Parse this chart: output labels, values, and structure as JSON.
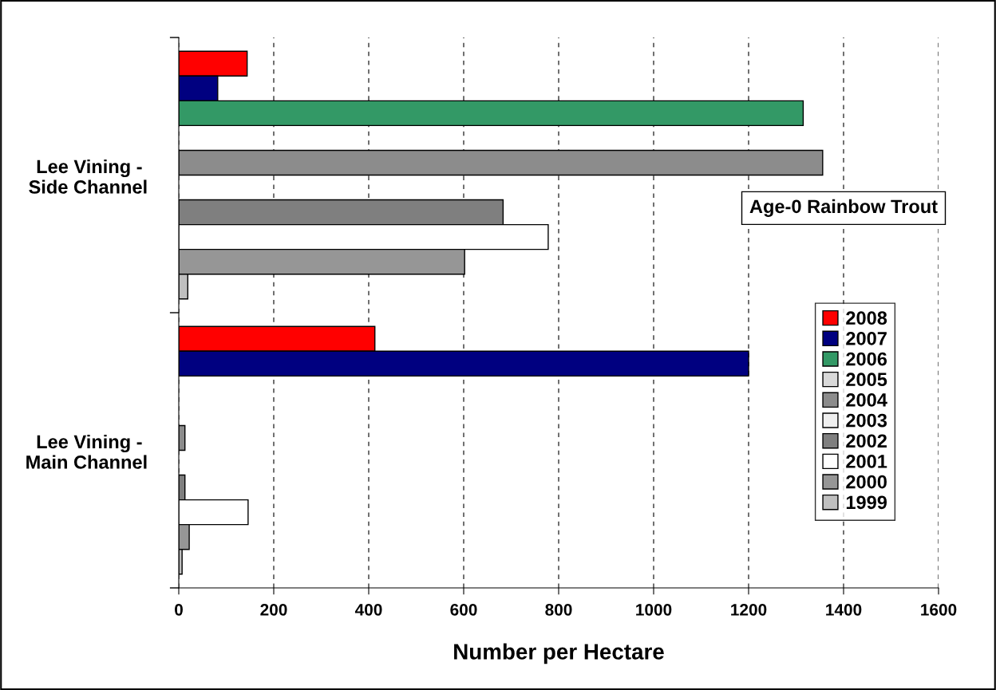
{
  "chart_data": {
    "type": "bar",
    "orientation": "horizontal",
    "xlabel": "Number per Hectare",
    "categories": [
      "Lee Vining - \nSide Channel",
      "Lee Vining - \nMain Channel"
    ],
    "series": [
      {
        "name": "2008",
        "color": "#ff0000",
        "values": [
          144,
          413
        ]
      },
      {
        "name": "2007",
        "color": "#000080",
        "values": [
          82,
          1200
        ]
      },
      {
        "name": "2006",
        "color": "#339966",
        "values": [
          1315,
          null
        ]
      },
      {
        "name": "2005",
        "color": "#d9d9d9",
        "values": [
          null,
          null
        ]
      },
      {
        "name": "2004",
        "color": "#8c8c8c",
        "values": [
          1356,
          13
        ]
      },
      {
        "name": "2003",
        "color": "#efefef",
        "values": [
          null,
          null
        ]
      },
      {
        "name": "2002",
        "color": "#7f7f7f",
        "values": [
          683,
          13
        ]
      },
      {
        "name": "2001",
        "color": "#ffffff",
        "values": [
          778,
          146
        ]
      },
      {
        "name": "2000",
        "color": "#969696",
        "values": [
          602,
          22
        ]
      },
      {
        "name": "1999",
        "color": "#bfbfbf",
        "values": [
          19,
          7
        ]
      }
    ],
    "xlim": [
      0,
      1600
    ],
    "xticks": [
      0,
      200,
      400,
      600,
      800,
      1000,
      1200,
      1400,
      1600
    ],
    "grid": "x",
    "legend": "right",
    "annotations": [
      "Age-0 Rainbow Trout"
    ]
  }
}
